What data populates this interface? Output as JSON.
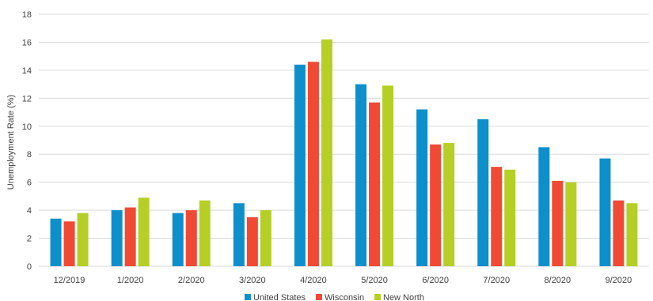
{
  "chart_data": {
    "type": "bar",
    "title": "",
    "xlabel": "",
    "ylabel": "Unemployment Rate (%)",
    "ylim": [
      0,
      18
    ],
    "yticks": [
      0,
      2,
      4,
      6,
      8,
      10,
      12,
      14,
      16,
      18
    ],
    "grid": true,
    "legend_position": "bottom",
    "categories": [
      "12/2019",
      "1/2020",
      "2/2020",
      "3/2020",
      "4/2020",
      "5/2020",
      "6/2020",
      "7/2020",
      "8/2020",
      "9/2020"
    ],
    "series": [
      {
        "name": "United States",
        "color": "#0d8fcc",
        "values": [
          3.4,
          4.0,
          3.8,
          4.5,
          14.4,
          13.0,
          11.2,
          10.5,
          8.5,
          7.7
        ]
      },
      {
        "name": "Wisconsin",
        "color": "#f04a35",
        "values": [
          3.2,
          4.2,
          4.0,
          3.5,
          14.6,
          11.7,
          8.7,
          7.1,
          6.1,
          4.7
        ]
      },
      {
        "name": "New North",
        "color": "#b5cf26",
        "values": [
          3.8,
          4.9,
          4.7,
          4.0,
          16.2,
          12.9,
          8.8,
          6.9,
          6.0,
          4.5
        ]
      }
    ]
  }
}
